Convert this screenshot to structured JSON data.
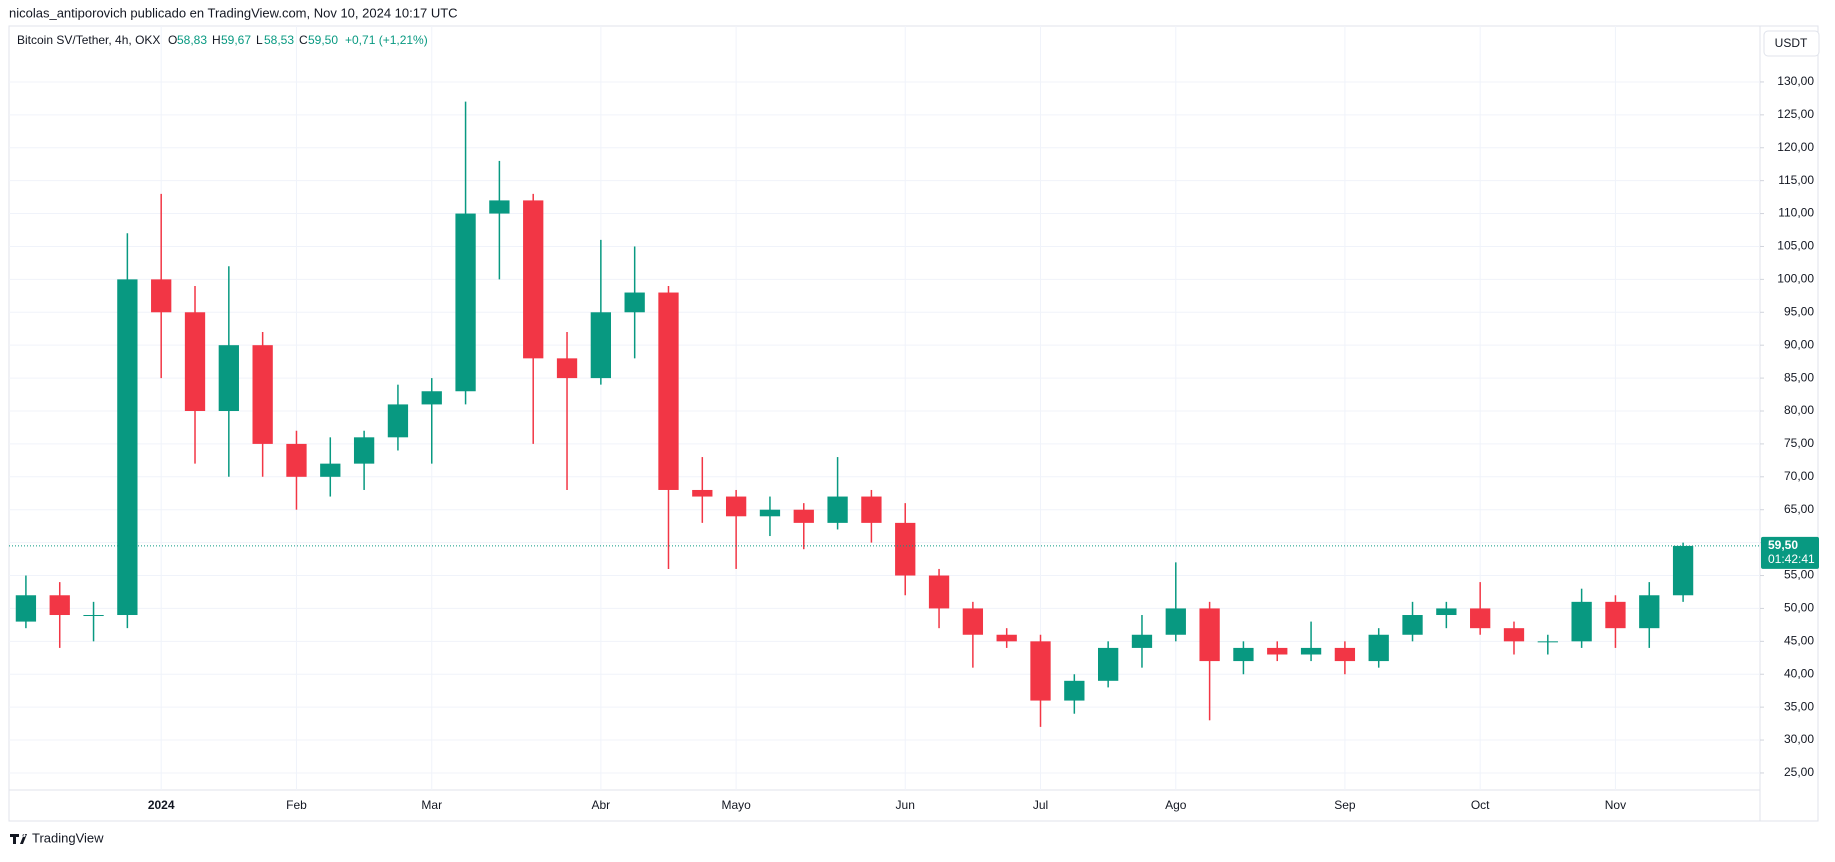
{
  "header": {
    "publisher": "nicolas_antiporovich publicado en TradingView.com, Nov 10, 2024 10:17 UTC"
  },
  "footer": {
    "logo": "TradingView"
  },
  "chart_data": {
    "type": "candlestick",
    "legend": {
      "symbol": "Bitcoin SV/Tether, 4h, OKX",
      "open_label": "O",
      "open": "58,83",
      "high_label": "H",
      "high": "59,67",
      "low_label": "L",
      "low": "58,53",
      "close_label": "C",
      "close": "59,50",
      "change": "+0,71 (+1,21%)"
    },
    "currency": "USDT",
    "last_price": 59.5,
    "last_price_label": "59,50",
    "countdown": "01:42:41",
    "up_color": "#089981",
    "down_color": "#f23645",
    "grid": true,
    "categories": [
      null,
      null,
      null,
      null,
      "2024",
      null,
      null,
      null,
      "Feb",
      null,
      null,
      null,
      "Mar",
      null,
      null,
      null,
      null,
      "Abr",
      null,
      null,
      null,
      "Mayo",
      null,
      null,
      null,
      null,
      "Jun",
      null,
      null,
      null,
      "Jul",
      null,
      null,
      null,
      "Ago",
      null,
      null,
      null,
      null,
      "Sep",
      null,
      null,
      null,
      "Oct",
      null,
      null,
      null,
      "Nov",
      null,
      null
    ],
    "open": [
      48,
      52,
      49,
      49,
      100,
      95,
      80,
      90,
      75,
      70,
      72,
      76,
      81,
      83,
      110,
      112,
      88,
      85,
      95,
      98,
      68,
      67,
      64,
      65,
      63,
      67,
      63,
      55,
      50,
      46,
      45,
      36,
      39,
      44,
      46,
      50,
      42,
      44,
      43,
      44,
      42,
      46,
      49,
      50,
      47,
      45,
      45,
      51,
      47,
      52
    ],
    "high": [
      55,
      54,
      51,
      107,
      113,
      99,
      102,
      92,
      77,
      76,
      77,
      84,
      85,
      127,
      118,
      113,
      92,
      106,
      105,
      99,
      73,
      68,
      67,
      66,
      73,
      68,
      66,
      56,
      51,
      47,
      46,
      40,
      45,
      49,
      57,
      51,
      45,
      45,
      48,
      45,
      47,
      51,
      51,
      54,
      48,
      46,
      53,
      52,
      54,
      60
    ],
    "low": [
      47,
      44,
      45,
      47,
      85,
      72,
      70,
      70,
      65,
      67,
      68,
      74,
      72,
      81,
      100,
      75,
      68,
      84,
      88,
      56,
      63,
      56,
      61,
      59,
      62,
      60,
      52,
      47,
      41,
      44,
      32,
      34,
      38,
      41,
      45,
      33,
      40,
      42,
      42,
      40,
      41,
      45,
      47,
      46,
      43,
      43,
      44,
      44,
      44,
      51
    ],
    "close": [
      52,
      49,
      49,
      100,
      95,
      80,
      90,
      75,
      70,
      72,
      76,
      81,
      83,
      110,
      112,
      88,
      85,
      95,
      98,
      68,
      67,
      64,
      65,
      63,
      67,
      63,
      55,
      50,
      46,
      45,
      36,
      39,
      44,
      46,
      50,
      42,
      44,
      43,
      44,
      42,
      46,
      49,
      50,
      47,
      45,
      45,
      51,
      47,
      52,
      59.5
    ],
    "ylim": [
      17.7,
      138.5
    ],
    "yticks": [
      {
        "value": 25,
        "label": "25,00"
      },
      {
        "value": 30,
        "label": "30,00"
      },
      {
        "value": 35,
        "label": "35,00"
      },
      {
        "value": 40,
        "label": "40,00"
      },
      {
        "value": 45,
        "label": "45,00"
      },
      {
        "value": 50,
        "label": "50,00"
      },
      {
        "value": 55,
        "label": "55,00"
      },
      {
        "value": 60,
        "label": "60,00"
      },
      {
        "value": 65,
        "label": "65,00"
      },
      {
        "value": 70,
        "label": "70,00"
      },
      {
        "value": 75,
        "label": "75,00"
      },
      {
        "value": 80,
        "label": "80,00"
      },
      {
        "value": 85,
        "label": "85,00"
      },
      {
        "value": 90,
        "label": "90,00"
      },
      {
        "value": 95,
        "label": "95,00"
      },
      {
        "value": 100,
        "label": "100,00"
      },
      {
        "value": 105,
        "label": "105,00"
      },
      {
        "value": 110,
        "label": "110,00"
      },
      {
        "value": 115,
        "label": "115,00"
      },
      {
        "value": 120,
        "label": "120,00"
      },
      {
        "value": 125,
        "label": "125,00"
      },
      {
        "value": 130,
        "label": "130,00"
      }
    ]
  }
}
